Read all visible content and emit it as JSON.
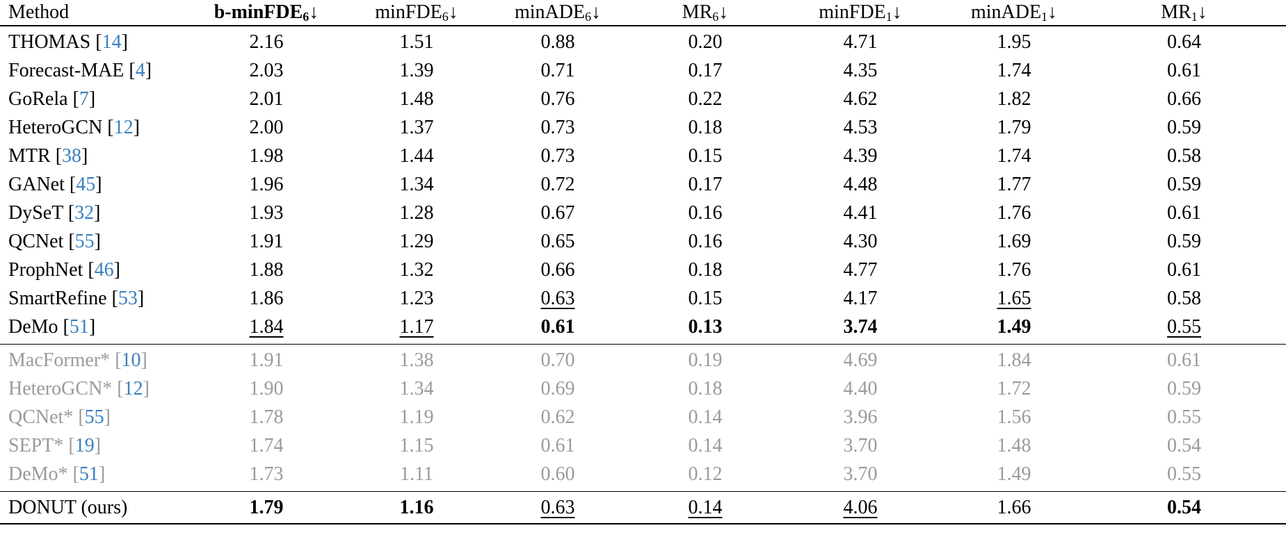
{
  "headers": [
    {
      "base": "Method",
      "sub": "",
      "arrow": "",
      "bold": false
    },
    {
      "base": "b-minFDE",
      "sub": "6",
      "arrow": "↓",
      "bold": true
    },
    {
      "base": "minFDE",
      "sub": "6",
      "arrow": "↓",
      "bold": false
    },
    {
      "base": "minADE",
      "sub": "6",
      "arrow": "↓",
      "bold": false
    },
    {
      "base": "MR",
      "sub": "6",
      "arrow": "↓",
      "bold": false
    },
    {
      "base": "minFDE",
      "sub": "1",
      "arrow": "↓",
      "bold": false
    },
    {
      "base": "minADE",
      "sub": "1",
      "arrow": "↓",
      "bold": false
    },
    {
      "base": "MR",
      "sub": "1",
      "arrow": "↓",
      "bold": false
    }
  ],
  "groups": [
    {
      "gray": false,
      "rows": [
        {
          "method": "THOMAS",
          "ref": "14",
          "values": [
            "2.16",
            "1.51",
            "0.88",
            "0.20",
            "4.71",
            "1.95",
            "0.64"
          ],
          "bold": [],
          "underline": []
        },
        {
          "method": "Forecast-MAE",
          "ref": "4",
          "values": [
            "2.03",
            "1.39",
            "0.71",
            "0.17",
            "4.35",
            "1.74",
            "0.61"
          ],
          "bold": [],
          "underline": []
        },
        {
          "method": "GoRela",
          "ref": "7",
          "values": [
            "2.01",
            "1.48",
            "0.76",
            "0.22",
            "4.62",
            "1.82",
            "0.66"
          ],
          "bold": [],
          "underline": []
        },
        {
          "method": "HeteroGCN",
          "ref": "12",
          "values": [
            "2.00",
            "1.37",
            "0.73",
            "0.18",
            "4.53",
            "1.79",
            "0.59"
          ],
          "bold": [],
          "underline": []
        },
        {
          "method": "MTR",
          "ref": "38",
          "values": [
            "1.98",
            "1.44",
            "0.73",
            "0.15",
            "4.39",
            "1.74",
            "0.58"
          ],
          "bold": [],
          "underline": []
        },
        {
          "method": "GANet",
          "ref": "45",
          "values": [
            "1.96",
            "1.34",
            "0.72",
            "0.17",
            "4.48",
            "1.77",
            "0.59"
          ],
          "bold": [],
          "underline": []
        },
        {
          "method": "DySeT",
          "ref": "32",
          "values": [
            "1.93",
            "1.28",
            "0.67",
            "0.16",
            "4.41",
            "1.76",
            "0.61"
          ],
          "bold": [],
          "underline": []
        },
        {
          "method": "QCNet",
          "ref": "55",
          "values": [
            "1.91",
            "1.29",
            "0.65",
            "0.16",
            "4.30",
            "1.69",
            "0.59"
          ],
          "bold": [],
          "underline": []
        },
        {
          "method": "ProphNet",
          "ref": "46",
          "values": [
            "1.88",
            "1.32",
            "0.66",
            "0.18",
            "4.77",
            "1.76",
            "0.61"
          ],
          "bold": [],
          "underline": []
        },
        {
          "method": "SmartRefine",
          "ref": "53",
          "values": [
            "1.86",
            "1.23",
            "0.63",
            "0.15",
            "4.17",
            "1.65",
            "0.58"
          ],
          "bold": [],
          "underline": [
            2,
            5
          ]
        },
        {
          "method": "DeMo",
          "ref": "51",
          "values": [
            "1.84",
            "1.17",
            "0.61",
            "0.13",
            "3.74",
            "1.49",
            "0.55"
          ],
          "bold": [
            2,
            3,
            4,
            5
          ],
          "underline": [
            0,
            1,
            6
          ]
        }
      ]
    },
    {
      "gray": true,
      "rows": [
        {
          "method": "MacFormer*",
          "ref": "10",
          "values": [
            "1.91",
            "1.38",
            "0.70",
            "0.19",
            "4.69",
            "1.84",
            "0.61"
          ],
          "bold": [],
          "underline": []
        },
        {
          "method": "HeteroGCN*",
          "ref": "12",
          "values": [
            "1.90",
            "1.34",
            "0.69",
            "0.18",
            "4.40",
            "1.72",
            "0.59"
          ],
          "bold": [],
          "underline": []
        },
        {
          "method": "QCNet*",
          "ref": "55",
          "values": [
            "1.78",
            "1.19",
            "0.62",
            "0.14",
            "3.96",
            "1.56",
            "0.55"
          ],
          "bold": [],
          "underline": []
        },
        {
          "method": "SEPT*",
          "ref": "19",
          "values": [
            "1.74",
            "1.15",
            "0.61",
            "0.14",
            "3.70",
            "1.48",
            "0.54"
          ],
          "bold": [],
          "underline": []
        },
        {
          "method": "DeMo*",
          "ref": "51",
          "values": [
            "1.73",
            "1.11",
            "0.60",
            "0.12",
            "3.70",
            "1.49",
            "0.55"
          ],
          "bold": [],
          "underline": []
        }
      ]
    },
    {
      "gray": false,
      "rows": [
        {
          "method": "DONUT (ours)",
          "ref": "",
          "values": [
            "1.79",
            "1.16",
            "0.63",
            "0.14",
            "4.06",
            "1.66",
            "0.54"
          ],
          "bold": [
            0,
            1,
            6
          ],
          "underline": [
            2,
            3,
            4
          ]
        }
      ]
    }
  ]
}
